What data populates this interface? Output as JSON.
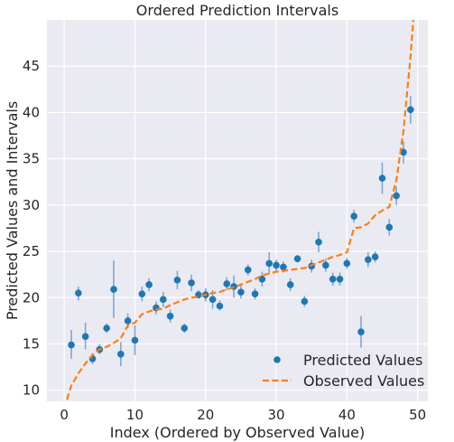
{
  "chart_data": {
    "type": "scatter",
    "title": "Ordered Prediction Intervals",
    "xlabel": "Index (Ordered by Observed Value)",
    "ylabel": "Predicted Values and Intervals",
    "xlim": [
      -2.45,
      51.45
    ],
    "ylim": [
      8.8,
      50
    ],
    "xticks": [
      0,
      10,
      20,
      30,
      40,
      50
    ],
    "yticks": [
      10,
      15,
      20,
      25,
      30,
      35,
      40,
      45
    ],
    "grid": true,
    "legend_position": "bottom-right",
    "colors": {
      "background": "#eaeaf2",
      "grid": "#ffffff",
      "predicted": "#1f77b4",
      "interval": "#7ea8cf",
      "observed": "#ff7f0e"
    },
    "series": [
      {
        "name": "Predicted Values",
        "kind": "scatter_with_intervals",
        "x": [
          1,
          2,
          3,
          4,
          5,
          6,
          7,
          8,
          9,
          10,
          11,
          12,
          13,
          14,
          15,
          16,
          17,
          18,
          19,
          20,
          21,
          22,
          23,
          24,
          25,
          26,
          27,
          28,
          29,
          30,
          31,
          32,
          33,
          34,
          35,
          36,
          37,
          38,
          39,
          40,
          41,
          42,
          43,
          44,
          45,
          46,
          47,
          48,
          49
        ],
        "y": [
          14.9,
          20.5,
          15.8,
          13.4,
          14.4,
          16.7,
          20.9,
          13.9,
          17.5,
          15.4,
          20.4,
          21.4,
          18.9,
          19.8,
          18.0,
          21.9,
          16.7,
          21.6,
          20.3,
          20.3,
          19.8,
          19.1,
          21.5,
          21.2,
          20.6,
          23.0,
          20.4,
          22.0,
          23.7,
          23.5,
          23.3,
          21.4,
          24.2,
          19.6,
          23.4,
          26.0,
          23.5,
          22.0,
          22.0,
          23.7,
          28.8,
          16.3,
          24.1,
          24.4,
          32.9,
          27.6,
          31.0,
          35.7,
          40.3
        ],
        "lower": [
          13.4,
          19.7,
          14.4,
          12.8,
          13.9,
          16.2,
          17.8,
          12.6,
          16.7,
          13.8,
          19.6,
          20.7,
          18.2,
          19.0,
          17.3,
          20.9,
          16.2,
          20.7,
          19.9,
          19.6,
          18.8,
          18.6,
          20.8,
          20.0,
          19.9,
          22.4,
          19.8,
          21.2,
          22.6,
          22.9,
          22.7,
          20.7,
          23.8,
          19.0,
          22.7,
          24.9,
          22.8,
          21.3,
          21.3,
          23.1,
          28.1,
          14.6,
          23.3,
          23.8,
          31.2,
          26.7,
          30.0,
          34.5,
          38.8
        ],
        "upper": [
          16.5,
          21.2,
          17.3,
          14.0,
          15.0,
          17.2,
          24.0,
          15.2,
          18.3,
          17.0,
          21.2,
          22.1,
          19.6,
          20.6,
          18.7,
          22.9,
          17.2,
          22.5,
          20.8,
          21.0,
          20.8,
          19.7,
          22.2,
          22.4,
          21.3,
          23.6,
          21.0,
          22.8,
          24.9,
          24.1,
          23.9,
          22.1,
          24.6,
          20.2,
          24.1,
          27.1,
          24.2,
          22.7,
          22.7,
          24.3,
          29.5,
          18.0,
          24.9,
          25.0,
          34.6,
          28.5,
          32.0,
          36.9,
          41.8
        ]
      },
      {
        "name": "Observed Values",
        "kind": "line",
        "x": [
          0,
          1,
          2,
          3,
          4,
          5,
          6,
          7,
          8,
          9,
          10,
          11,
          12,
          13,
          14,
          15,
          16,
          17,
          18,
          19,
          20,
          21,
          22,
          23,
          24,
          25,
          26,
          27,
          28,
          29,
          30,
          31,
          32,
          33,
          34,
          35,
          36,
          37,
          38,
          39,
          40,
          41,
          42,
          43,
          44,
          45,
          46,
          47,
          48,
          49,
          50
        ],
        "y": [
          8.0,
          10.5,
          11.8,
          12.9,
          13.8,
          14.4,
          14.7,
          15.1,
          15.6,
          17.0,
          17.3,
          18.2,
          18.5,
          18.7,
          18.8,
          19.2,
          19.5,
          19.8,
          20.0,
          20.1,
          20.3,
          20.5,
          20.6,
          20.9,
          21.1,
          21.4,
          21.7,
          22.0,
          22.4,
          22.6,
          22.8,
          22.9,
          23.0,
          23.1,
          23.2,
          23.5,
          23.8,
          24.1,
          24.4,
          24.6,
          24.9,
          27.5,
          27.6,
          28.0,
          28.9,
          29.4,
          29.8,
          32.7,
          38.0,
          46.0,
          56.0
        ]
      }
    ]
  }
}
